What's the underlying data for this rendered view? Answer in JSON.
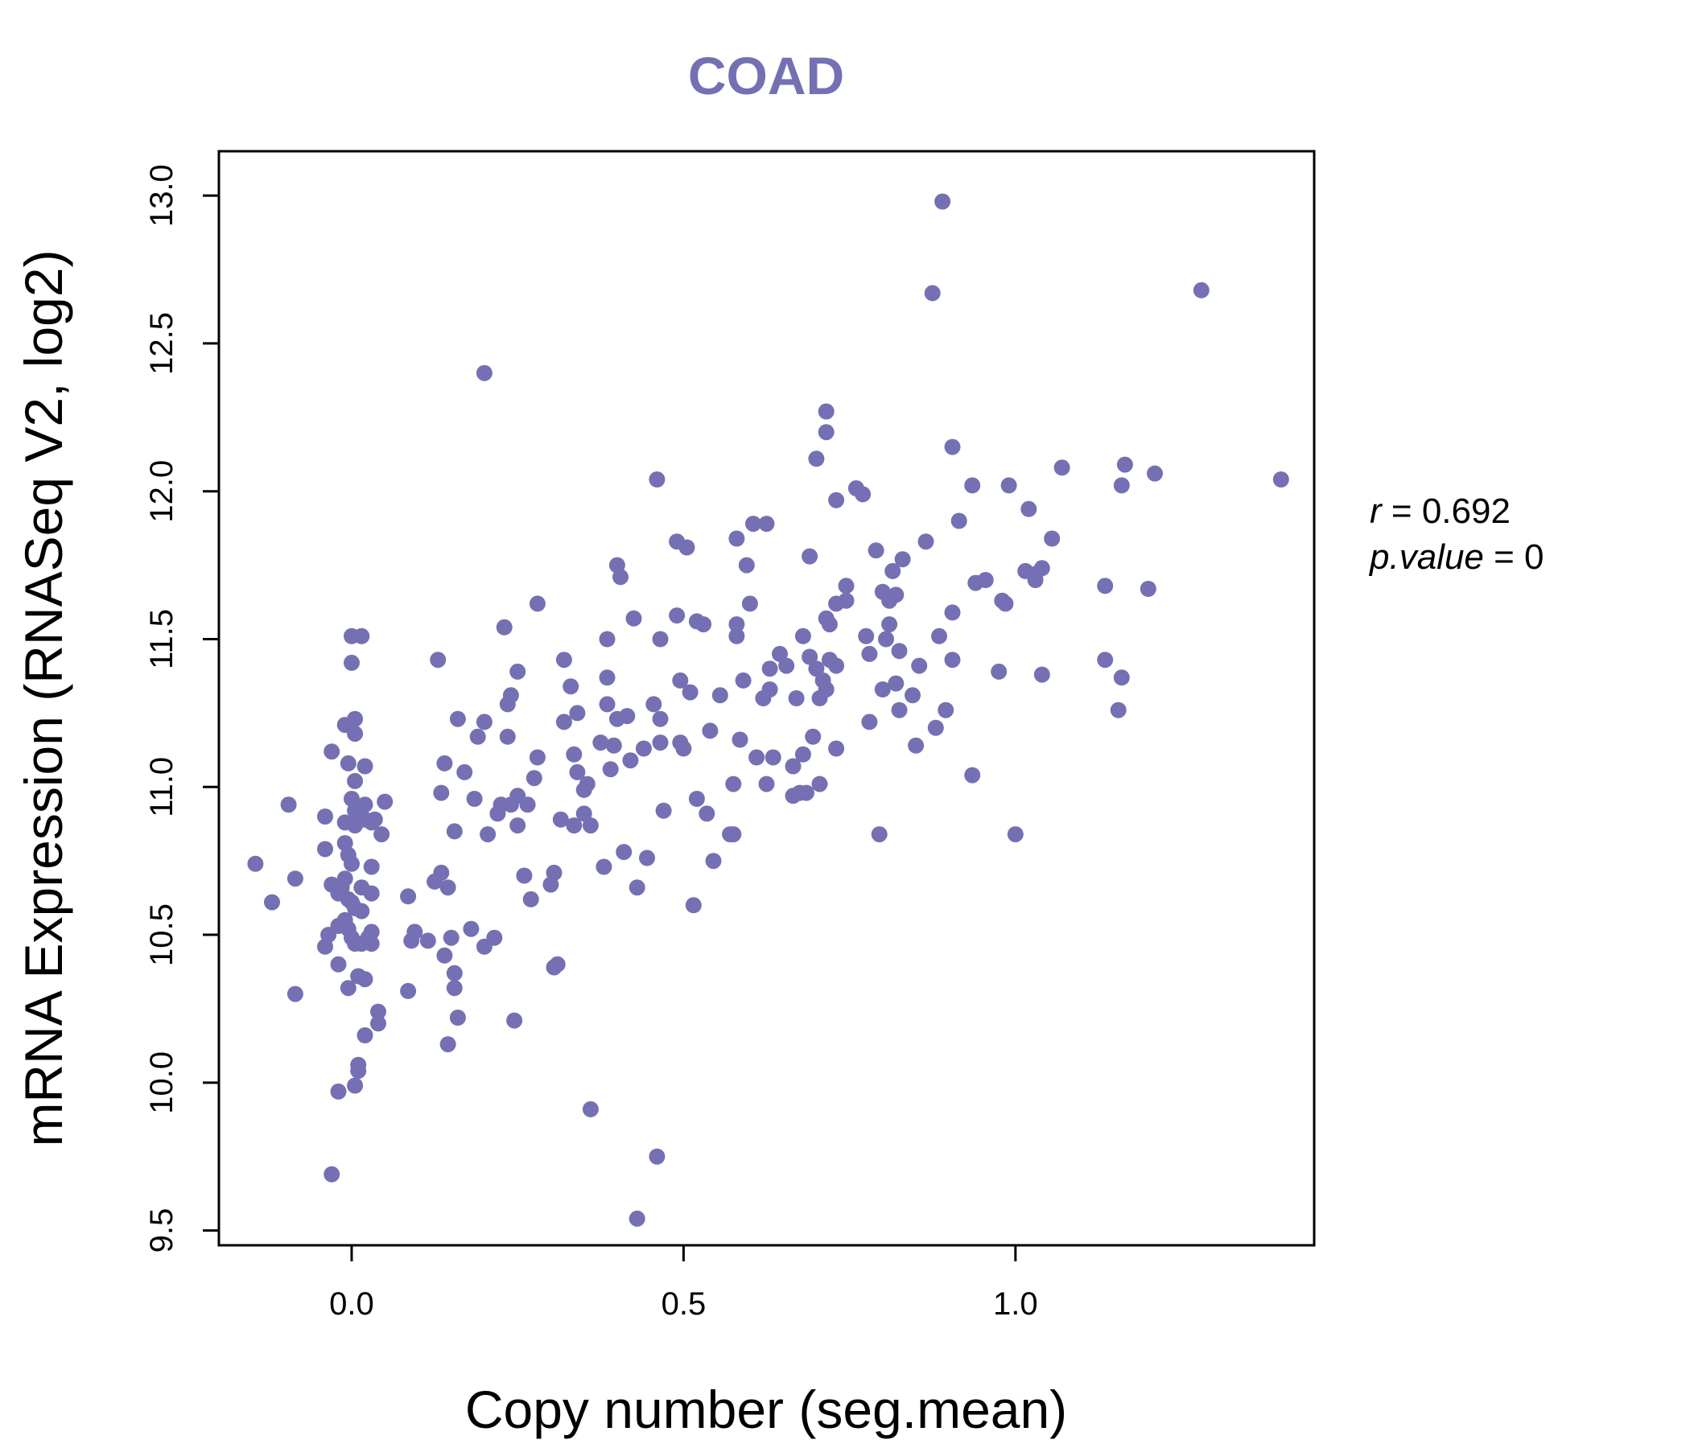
{
  "chart_data": {
    "type": "scatter",
    "title": "COAD",
    "xlabel": "Copy number (seg.mean)",
    "ylabel": "mRNA Expression (RNASeq V2, log2)",
    "xlim": [
      -0.2,
      1.45
    ],
    "ylim": [
      9.45,
      13.15
    ],
    "xticks": [
      "0.0",
      "0.5",
      "1.0"
    ],
    "yticks": [
      "9.5",
      "10.0",
      "10.5",
      "11.0",
      "11.5",
      "12.0",
      "12.5",
      "13.0"
    ],
    "grid": false,
    "point_color": "#7570b3",
    "stats": {
      "r_label": "r",
      "r_value": "0.692",
      "p_label": "p.value",
      "p_value": "0"
    },
    "points": [
      [
        -0.145,
        10.74
      ],
      [
        -0.12,
        10.61
      ],
      [
        -0.095,
        10.94
      ],
      [
        -0.085,
        10.69
      ],
      [
        -0.085,
        10.3
      ],
      [
        -0.04,
        10.9
      ],
      [
        -0.04,
        10.79
      ],
      [
        -0.04,
        10.46
      ],
      [
        -0.035,
        10.5
      ],
      [
        -0.03,
        11.12
      ],
      [
        -0.03,
        10.67
      ],
      [
        -0.03,
        9.69
      ],
      [
        -0.02,
        10.64
      ],
      [
        -0.02,
        10.53
      ],
      [
        -0.02,
        10.4
      ],
      [
        -0.02,
        9.97
      ],
      [
        -0.015,
        10.66
      ],
      [
        -0.01,
        11.21
      ],
      [
        -0.01,
        10.88
      ],
      [
        -0.01,
        10.81
      ],
      [
        -0.01,
        10.69
      ],
      [
        -0.01,
        10.55
      ],
      [
        -0.005,
        11.08
      ],
      [
        -0.005,
        10.77
      ],
      [
        -0.005,
        10.62
      ],
      [
        -0.005,
        10.52
      ],
      [
        -0.005,
        10.32
      ],
      [
        0.0,
        11.42
      ],
      [
        0.0,
        10.96
      ],
      [
        0.0,
        10.74
      ],
      [
        0.0,
        10.61
      ],
      [
        0.0,
        10.49
      ],
      [
        0.0,
        11.51
      ],
      [
        0.005,
        11.23
      ],
      [
        0.005,
        11.18
      ],
      [
        0.005,
        11.02
      ],
      [
        0.005,
        10.92
      ],
      [
        0.005,
        10.87
      ],
      [
        0.005,
        10.59
      ],
      [
        0.005,
        10.47
      ],
      [
        0.005,
        9.99
      ],
      [
        0.01,
        10.06
      ],
      [
        0.01,
        10.04
      ],
      [
        0.01,
        10.36
      ],
      [
        0.01,
        10.92
      ],
      [
        0.015,
        11.51
      ],
      [
        0.015,
        10.9
      ],
      [
        0.015,
        10.66
      ],
      [
        0.015,
        10.58
      ],
      [
        0.015,
        10.47
      ],
      [
        0.02,
        11.07
      ],
      [
        0.02,
        10.94
      ],
      [
        0.02,
        10.89
      ],
      [
        0.02,
        10.35
      ],
      [
        0.02,
        10.16
      ],
      [
        0.025,
        10.49
      ],
      [
        0.03,
        10.64
      ],
      [
        0.03,
        10.88
      ],
      [
        0.03,
        10.73
      ],
      [
        0.03,
        10.51
      ],
      [
        0.03,
        10.47
      ],
      [
        0.035,
        10.89
      ],
      [
        0.04,
        10.24
      ],
      [
        0.04,
        10.2
      ],
      [
        0.045,
        10.84
      ],
      [
        0.05,
        10.95
      ],
      [
        0.085,
        10.63
      ],
      [
        0.085,
        10.31
      ],
      [
        0.09,
        10.48
      ],
      [
        0.095,
        10.51
      ],
      [
        0.115,
        10.48
      ],
      [
        0.125,
        10.68
      ],
      [
        0.13,
        11.43
      ],
      [
        0.135,
        10.98
      ],
      [
        0.135,
        10.71
      ],
      [
        0.14,
        11.08
      ],
      [
        0.14,
        10.43
      ],
      [
        0.145,
        10.66
      ],
      [
        0.145,
        10.13
      ],
      [
        0.15,
        10.49
      ],
      [
        0.155,
        10.85
      ],
      [
        0.155,
        10.37
      ],
      [
        0.155,
        10.32
      ],
      [
        0.16,
        11.23
      ],
      [
        0.16,
        10.22
      ],
      [
        0.17,
        11.05
      ],
      [
        0.18,
        10.52
      ],
      [
        0.185,
        10.96
      ],
      [
        0.19,
        11.17
      ],
      [
        0.2,
        12.4
      ],
      [
        0.2,
        11.22
      ],
      [
        0.2,
        10.46
      ],
      [
        0.205,
        10.84
      ],
      [
        0.215,
        10.49
      ],
      [
        0.22,
        10.91
      ],
      [
        0.225,
        10.94
      ],
      [
        0.23,
        11.54
      ],
      [
        0.235,
        11.28
      ],
      [
        0.235,
        11.17
      ],
      [
        0.24,
        11.31
      ],
      [
        0.24,
        10.94
      ],
      [
        0.245,
        10.21
      ],
      [
        0.25,
        11.39
      ],
      [
        0.25,
        10.97
      ],
      [
        0.25,
        10.87
      ],
      [
        0.26,
        10.7
      ],
      [
        0.265,
        10.94
      ],
      [
        0.27,
        10.62
      ],
      [
        0.275,
        11.03
      ],
      [
        0.28,
        11.62
      ],
      [
        0.28,
        11.1
      ],
      [
        0.3,
        10.67
      ],
      [
        0.305,
        10.71
      ],
      [
        0.305,
        10.39
      ],
      [
        0.31,
        10.4
      ],
      [
        0.315,
        10.89
      ],
      [
        0.32,
        11.43
      ],
      [
        0.32,
        11.22
      ],
      [
        0.33,
        11.34
      ],
      [
        0.335,
        11.11
      ],
      [
        0.335,
        10.87
      ],
      [
        0.34,
        11.25
      ],
      [
        0.34,
        11.05
      ],
      [
        0.35,
        10.99
      ],
      [
        0.35,
        10.91
      ],
      [
        0.355,
        11.01
      ],
      [
        0.36,
        10.87
      ],
      [
        0.36,
        9.91
      ],
      [
        0.375,
        11.15
      ],
      [
        0.38,
        10.73
      ],
      [
        0.385,
        11.5
      ],
      [
        0.385,
        11.37
      ],
      [
        0.385,
        11.28
      ],
      [
        0.39,
        11.06
      ],
      [
        0.395,
        11.14
      ],
      [
        0.4,
        11.75
      ],
      [
        0.4,
        11.23
      ],
      [
        0.405,
        11.71
      ],
      [
        0.41,
        10.78
      ],
      [
        0.415,
        11.24
      ],
      [
        0.42,
        11.09
      ],
      [
        0.425,
        11.57
      ],
      [
        0.43,
        9.54
      ],
      [
        0.43,
        10.66
      ],
      [
        0.44,
        11.13
      ],
      [
        0.445,
        10.76
      ],
      [
        0.455,
        11.28
      ],
      [
        0.46,
        12.04
      ],
      [
        0.46,
        9.75
      ],
      [
        0.465,
        11.5
      ],
      [
        0.465,
        11.15
      ],
      [
        0.465,
        11.23
      ],
      [
        0.47,
        10.92
      ],
      [
        0.49,
        11.58
      ],
      [
        0.49,
        11.83
      ],
      [
        0.495,
        11.36
      ],
      [
        0.495,
        11.15
      ],
      [
        0.5,
        11.13
      ],
      [
        0.505,
        11.81
      ],
      [
        0.51,
        11.32
      ],
      [
        0.515,
        10.6
      ],
      [
        0.52,
        11.56
      ],
      [
        0.52,
        10.96
      ],
      [
        0.53,
        11.55
      ],
      [
        0.535,
        10.91
      ],
      [
        0.54,
        11.19
      ],
      [
        0.545,
        10.75
      ],
      [
        0.555,
        11.31
      ],
      [
        0.57,
        10.84
      ],
      [
        0.575,
        11.01
      ],
      [
        0.575,
        10.84
      ],
      [
        0.58,
        11.84
      ],
      [
        0.58,
        11.55
      ],
      [
        0.58,
        11.51
      ],
      [
        0.585,
        11.16
      ],
      [
        0.59,
        11.36
      ],
      [
        0.595,
        11.75
      ],
      [
        0.6,
        11.62
      ],
      [
        0.605,
        11.89
      ],
      [
        0.61,
        11.1
      ],
      [
        0.62,
        11.3
      ],
      [
        0.625,
        11.89
      ],
      [
        0.625,
        11.01
      ],
      [
        0.63,
        11.4
      ],
      [
        0.63,
        11.33
      ],
      [
        0.635,
        11.1
      ],
      [
        0.645,
        11.45
      ],
      [
        0.655,
        11.41
      ],
      [
        0.665,
        10.97
      ],
      [
        0.665,
        11.07
      ],
      [
        0.67,
        11.3
      ],
      [
        0.675,
        10.98
      ],
      [
        0.68,
        11.51
      ],
      [
        0.68,
        11.11
      ],
      [
        0.685,
        10.98
      ],
      [
        0.69,
        11.44
      ],
      [
        0.69,
        11.78
      ],
      [
        0.695,
        11.17
      ],
      [
        0.7,
        12.11
      ],
      [
        0.7,
        11.4
      ],
      [
        0.705,
        11.3
      ],
      [
        0.705,
        11.01
      ],
      [
        0.71,
        11.36
      ],
      [
        0.715,
        12.27
      ],
      [
        0.715,
        12.2
      ],
      [
        0.715,
        11.57
      ],
      [
        0.715,
        11.33
      ],
      [
        0.72,
        11.55
      ],
      [
        0.72,
        11.43
      ],
      [
        0.73,
        11.41
      ],
      [
        0.73,
        11.62
      ],
      [
        0.73,
        11.97
      ],
      [
        0.73,
        11.13
      ],
      [
        0.745,
        11.63
      ],
      [
        0.745,
        11.68
      ],
      [
        0.76,
        12.01
      ],
      [
        0.77,
        11.99
      ],
      [
        0.775,
        11.51
      ],
      [
        0.78,
        11.45
      ],
      [
        0.78,
        11.22
      ],
      [
        0.79,
        11.8
      ],
      [
        0.795,
        10.84
      ],
      [
        0.8,
        11.66
      ],
      [
        0.8,
        11.33
      ],
      [
        0.805,
        11.5
      ],
      [
        0.81,
        11.63
      ],
      [
        0.81,
        11.55
      ],
      [
        0.815,
        11.73
      ],
      [
        0.82,
        11.65
      ],
      [
        0.82,
        11.35
      ],
      [
        0.825,
        11.26
      ],
      [
        0.825,
        11.46
      ],
      [
        0.83,
        11.77
      ],
      [
        0.845,
        11.31
      ],
      [
        0.85,
        11.14
      ],
      [
        0.855,
        11.41
      ],
      [
        0.865,
        11.83
      ],
      [
        0.875,
        12.67
      ],
      [
        0.88,
        11.2
      ],
      [
        0.885,
        11.51
      ],
      [
        0.89,
        12.98
      ],
      [
        0.895,
        11.26
      ],
      [
        0.905,
        12.15
      ],
      [
        0.905,
        11.59
      ],
      [
        0.905,
        11.43
      ],
      [
        0.915,
        11.9
      ],
      [
        0.935,
        12.02
      ],
      [
        0.935,
        11.04
      ],
      [
        0.94,
        11.69
      ],
      [
        0.955,
        11.7
      ],
      [
        0.975,
        11.39
      ],
      [
        0.98,
        11.63
      ],
      [
        0.985,
        11.62
      ],
      [
        0.99,
        12.02
      ],
      [
        1.0,
        10.84
      ],
      [
        1.015,
        11.73
      ],
      [
        1.02,
        11.94
      ],
      [
        1.03,
        11.72
      ],
      [
        1.03,
        11.7
      ],
      [
        1.04,
        11.38
      ],
      [
        1.04,
        11.74
      ],
      [
        1.055,
        11.84
      ],
      [
        1.07,
        12.08
      ],
      [
        1.135,
        11.68
      ],
      [
        1.135,
        11.43
      ],
      [
        1.155,
        11.26
      ],
      [
        1.16,
        11.37
      ],
      [
        1.16,
        12.02
      ],
      [
        1.165,
        12.09
      ],
      [
        1.2,
        11.67
      ],
      [
        1.21,
        12.06
      ],
      [
        1.28,
        12.68
      ],
      [
        1.4,
        12.04
      ]
    ]
  }
}
